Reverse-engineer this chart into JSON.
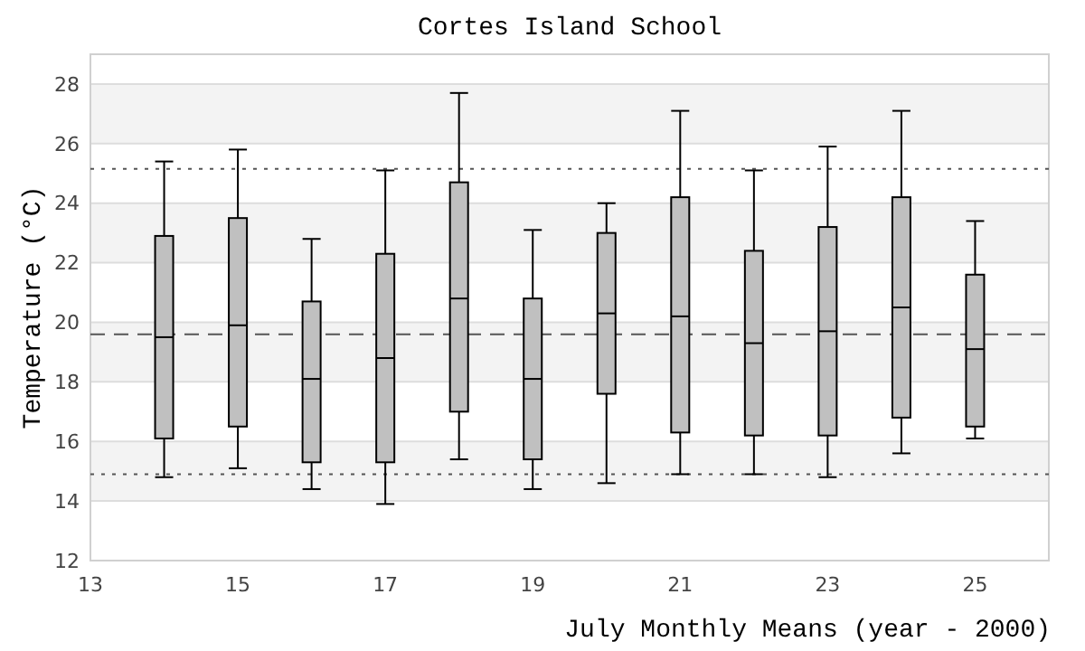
{
  "chart_data": {
    "type": "box",
    "title": "Cortes Island School",
    "xlabel": "July Monthly Means (year - 2000)",
    "ylabel": "Temperature (°C)",
    "x": [
      14,
      15,
      16,
      17,
      18,
      19,
      20,
      21,
      22,
      23,
      24,
      25
    ],
    "color": "#c0c0c0",
    "boxes": [
      {
        "low": 14.8,
        "q1": 16.1,
        "median": 19.5,
        "q3": 22.9,
        "high": 25.4
      },
      {
        "low": 15.1,
        "q1": 16.5,
        "median": 19.9,
        "q3": 23.5,
        "high": 25.8
      },
      {
        "low": 14.4,
        "q1": 15.3,
        "median": 18.1,
        "q3": 20.7,
        "high": 22.8
      },
      {
        "low": 13.9,
        "q1": 15.3,
        "median": 18.8,
        "q3": 22.3,
        "high": 25.1
      },
      {
        "low": 15.4,
        "q1": 17.0,
        "median": 20.8,
        "q3": 24.7,
        "high": 27.7
      },
      {
        "low": 14.4,
        "q1": 15.4,
        "median": 18.1,
        "q3": 20.8,
        "high": 23.1
      },
      {
        "low": 14.6,
        "q1": 17.6,
        "median": 20.3,
        "q3": 23.0,
        "high": 24.0
      },
      {
        "low": 14.9,
        "q1": 16.3,
        "median": 20.2,
        "q3": 24.2,
        "high": 27.1
      },
      {
        "low": 14.9,
        "q1": 16.2,
        "median": 19.3,
        "q3": 22.4,
        "high": 25.1
      },
      {
        "low": 14.8,
        "q1": 16.2,
        "median": 19.7,
        "q3": 23.2,
        "high": 25.9
      },
      {
        "low": 15.6,
        "q1": 16.8,
        "median": 20.5,
        "q3": 24.2,
        "high": 27.1
      },
      {
        "low": 16.1,
        "q1": 16.5,
        "median": 19.1,
        "q3": 21.6,
        "high": 23.4
      }
    ],
    "xlim": [
      13,
      26
    ],
    "xticks": [
      13,
      15,
      17,
      19,
      21,
      23,
      25
    ],
    "ylim": [
      12,
      29
    ],
    "yticks": [
      12,
      14,
      16,
      18,
      20,
      22,
      24,
      26,
      28
    ],
    "grid": "y",
    "ref_lines": [
      {
        "axis": "y",
        "value": 25.15,
        "color": "#555555",
        "line_style": "dotted"
      },
      {
        "axis": "y",
        "value": 19.6,
        "color": "#555555",
        "line_style": "dashed"
      },
      {
        "axis": "y",
        "value": 14.9,
        "color": "#555555",
        "line_style": "dotted"
      }
    ]
  }
}
